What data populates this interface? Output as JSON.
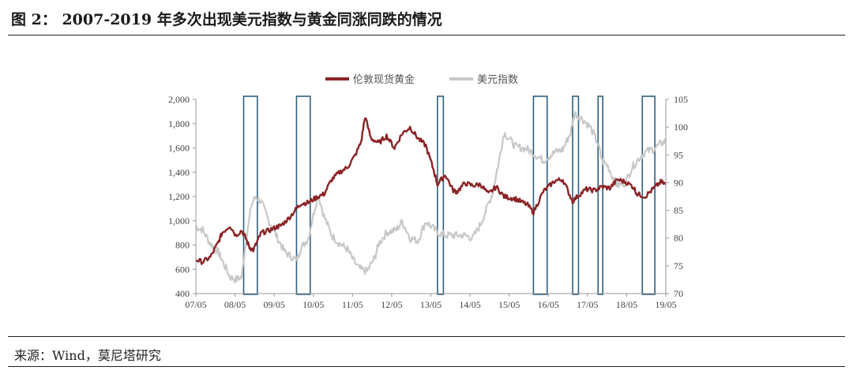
{
  "figure": {
    "title": "图 2：  2007-2019 年多次出现美元指数与黄金同涨同跌的情况",
    "source": "来源：Wind，莫尼塔研究"
  },
  "colors": {
    "gold": "#8b2326",
    "usd": "#c8c8c8",
    "box": "#2e5f7e",
    "axis": "#999999"
  },
  "chart_data": {
    "type": "line",
    "title": "",
    "legend_position": "top-center",
    "x_ticks": [
      "07/05",
      "08/05",
      "09/05",
      "10/05",
      "11/05",
      "12/05",
      "13/05",
      "14/05",
      "15/05",
      "16/05",
      "17/05",
      "18/05",
      "19/05"
    ],
    "xlim": [
      2007.33,
      2019.33
    ],
    "y_left": {
      "ticks": [
        "2,000",
        "1,800",
        "1,600",
        "1,400",
        "1,200",
        "1,000",
        "800",
        "600",
        "400"
      ],
      "lim": [
        400,
        2000
      ]
    },
    "y_right": {
      "ticks": [
        "105",
        "100",
        "95",
        "90",
        "85",
        "80",
        "75",
        "70"
      ],
      "lim": [
        70,
        105
      ]
    },
    "series": [
      {
        "name": "伦敦现货黄金",
        "axis": "left",
        "x": [
          2007.33,
          2007.5,
          2007.7,
          2007.9,
          2008.0,
          2008.2,
          2008.35,
          2008.5,
          2008.6,
          2008.7,
          2008.8,
          2008.9,
          2009.0,
          2009.2,
          2009.4,
          2009.5,
          2009.7,
          2009.9,
          2010.0,
          2010.2,
          2010.45,
          2010.6,
          2010.8,
          2011.0,
          2011.2,
          2011.4,
          2011.55,
          2011.65,
          2011.8,
          2012.0,
          2012.2,
          2012.4,
          2012.6,
          2012.8,
          2013.0,
          2013.2,
          2013.4,
          2013.5,
          2013.7,
          2013.9,
          2014.0,
          2014.2,
          2014.4,
          2014.6,
          2014.8,
          2015.0,
          2015.2,
          2015.5,
          2015.8,
          2015.95,
          2016.2,
          2016.5,
          2016.7,
          2016.95,
          2017.1,
          2017.3,
          2017.5,
          2017.7,
          2017.9,
          2018.1,
          2018.3,
          2018.5,
          2018.6,
          2018.8,
          2019.0,
          2019.2,
          2019.33
        ],
        "y": [
          680,
          660,
          700,
          820,
          900,
          960,
          880,
          920,
          860,
          780,
          760,
          830,
          900,
          920,
          950,
          960,
          1020,
          1100,
          1140,
          1150,
          1200,
          1220,
          1340,
          1400,
          1440,
          1540,
          1650,
          1860,
          1680,
          1640,
          1700,
          1600,
          1720,
          1770,
          1680,
          1620,
          1420,
          1300,
          1380,
          1250,
          1240,
          1310,
          1290,
          1300,
          1220,
          1280,
          1200,
          1180,
          1130,
          1070,
          1240,
          1330,
          1340,
          1160,
          1210,
          1260,
          1250,
          1280,
          1270,
          1340,
          1320,
          1280,
          1220,
          1200,
          1260,
          1320,
          1300
        ]
      },
      {
        "name": "美元指数",
        "axis": "right",
        "x": [
          2007.33,
          2007.5,
          2007.7,
          2007.9,
          2008.0,
          2008.2,
          2008.35,
          2008.5,
          2008.6,
          2008.75,
          2008.85,
          2009.0,
          2009.2,
          2009.45,
          2009.6,
          2009.9,
          2010.0,
          2010.2,
          2010.45,
          2010.6,
          2010.8,
          2011.0,
          2011.2,
          2011.35,
          2011.5,
          2011.7,
          2011.9,
          2012.0,
          2012.2,
          2012.45,
          2012.6,
          2012.8,
          2013.0,
          2013.2,
          2013.5,
          2013.7,
          2013.9,
          2014.2,
          2014.4,
          2014.6,
          2014.9,
          2015.1,
          2015.2,
          2015.5,
          2015.8,
          2016.0,
          2016.2,
          2016.5,
          2016.7,
          2016.9,
          2017.0,
          2017.2,
          2017.4,
          2017.6,
          2017.7,
          2017.85,
          2018.0,
          2018.1,
          2018.3,
          2018.45,
          2018.6,
          2018.8,
          2019.0,
          2019.2,
          2019.33
        ],
        "y": [
          82,
          81.5,
          79,
          77.5,
          76,
          73,
          72.5,
          73,
          79,
          86,
          87.5,
          86.5,
          83,
          79.5,
          77.5,
          76,
          78,
          80,
          88,
          84,
          80.5,
          79,
          78,
          76,
          74.5,
          74,
          76.5,
          79,
          81,
          81.5,
          83,
          80,
          79.5,
          83,
          81,
          80.5,
          80.5,
          80.5,
          80,
          82.5,
          88,
          95,
          99,
          96.5,
          96,
          95,
          94,
          95.5,
          96,
          99,
          102.5,
          101.5,
          100,
          97,
          94,
          93,
          90.5,
          89.5,
          90,
          92.5,
          94,
          95.5,
          96,
          97,
          97.5
        ]
      }
    ],
    "highlight_periods": [
      [
        2008.55,
        2008.9
      ],
      [
        2009.9,
        2010.25
      ],
      [
        2013.5,
        2013.65
      ],
      [
        2015.95,
        2016.3
      ],
      [
        2016.95,
        2017.1
      ],
      [
        2017.6,
        2017.72
      ],
      [
        2018.73,
        2019.05
      ]
    ]
  }
}
